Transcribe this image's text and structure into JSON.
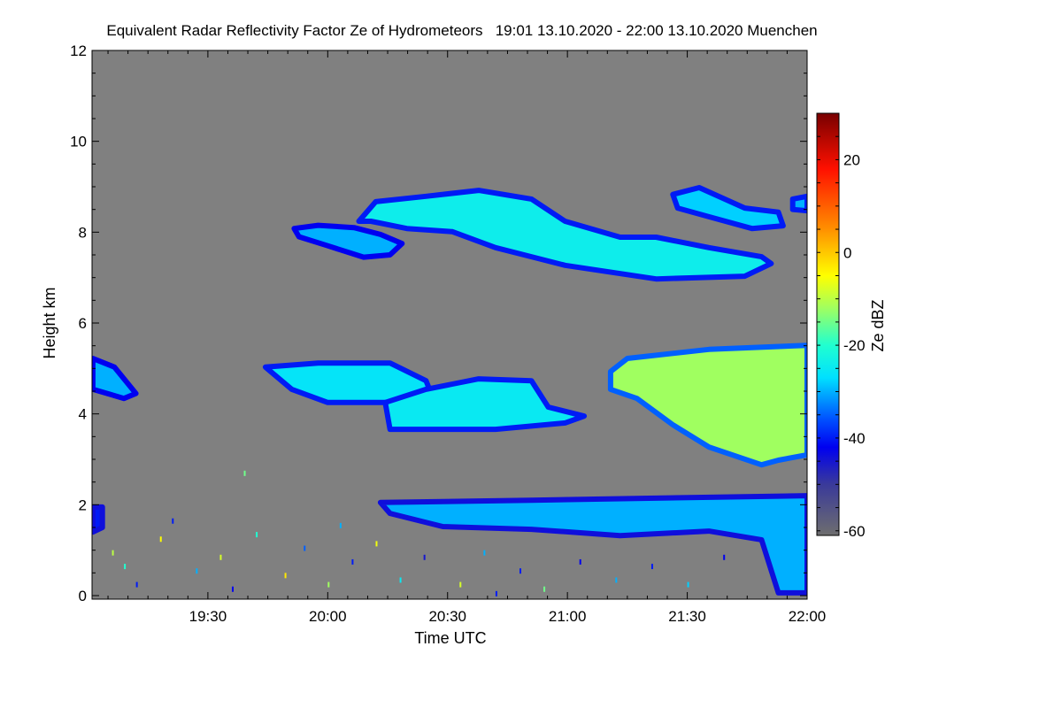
{
  "chart_data": {
    "type": "heatmap",
    "title": "Equivalent Radar Reflectivity Factor Ze of Hydrometeors   19:01 13.10.2020 - 22:00 13.10.2020 Muenchen",
    "xlabel": "Time UTC",
    "ylabel": "Height km",
    "x_unit": "hour UTC (decimal)",
    "xlim": [
      19.0167,
      22.0
    ],
    "ylim": [
      0,
      12
    ],
    "xticks": [
      {
        "v": 19.5,
        "label": "19:30"
      },
      {
        "v": 20.0,
        "label": "20:00"
      },
      {
        "v": 20.5,
        "label": "20:30"
      },
      {
        "v": 21.0,
        "label": "21:00"
      },
      {
        "v": 21.5,
        "label": "21:30"
      },
      {
        "v": 22.0,
        "label": "22:00"
      }
    ],
    "yticks": [
      {
        "v": 0,
        "label": "0"
      },
      {
        "v": 2,
        "label": "2"
      },
      {
        "v": 4,
        "label": "4"
      },
      {
        "v": 6,
        "label": "6"
      },
      {
        "v": 8,
        "label": "8"
      },
      {
        "v": 10,
        "label": "10"
      },
      {
        "v": 12,
        "label": "12"
      }
    ],
    "background_color": "#808080",
    "colorbar": {
      "label": "Ze dBZ",
      "range": [
        -61,
        30
      ],
      "ticks": [
        {
          "v": 20,
          "label": "20"
        },
        {
          "v": 0,
          "label": "0"
        },
        {
          "v": -20,
          "label": "-20"
        },
        {
          "v": -40,
          "label": "-40"
        },
        {
          "v": -60,
          "label": "-60"
        }
      ],
      "stops": [
        {
          "v": -61,
          "color": "#6e6e6e"
        },
        {
          "v": -50,
          "color": "#3a3a9a"
        },
        {
          "v": -42,
          "color": "#0000f0"
        },
        {
          "v": -36,
          "color": "#0050ff"
        },
        {
          "v": -27,
          "color": "#00e0ff"
        },
        {
          "v": -20,
          "color": "#20ffd0"
        },
        {
          "v": -12,
          "color": "#a0ff60"
        },
        {
          "v": -5,
          "color": "#ffff00"
        },
        {
          "v": 5,
          "color": "#ff9000"
        },
        {
          "v": 18,
          "color": "#ff1000"
        },
        {
          "v": 30,
          "color": "#780000"
        }
      ]
    },
    "echo_regions": [
      {
        "name": "upper-cloud-west",
        "edge_dbz": -42,
        "core_dbz": -30,
        "points": [
          [
            19.86,
            8.08
          ],
          [
            19.96,
            8.15
          ],
          [
            20.11,
            8.1
          ],
          [
            20.22,
            7.95
          ],
          [
            20.31,
            7.75
          ],
          [
            20.26,
            7.5
          ],
          [
            20.15,
            7.45
          ],
          [
            20.0,
            7.7
          ],
          [
            19.88,
            7.9
          ]
        ]
      },
      {
        "name": "upper-cloud-main",
        "edge_dbz": -40,
        "core_dbz": -24,
        "points": [
          [
            20.13,
            8.24
          ],
          [
            20.2,
            8.67
          ],
          [
            20.41,
            8.79
          ],
          [
            20.63,
            8.92
          ],
          [
            20.85,
            8.73
          ],
          [
            20.99,
            8.24
          ],
          [
            21.22,
            7.89
          ],
          [
            21.37,
            7.89
          ],
          [
            21.59,
            7.66
          ],
          [
            21.81,
            7.46
          ],
          [
            21.85,
            7.31
          ],
          [
            21.74,
            7.03
          ],
          [
            21.37,
            6.97
          ],
          [
            20.99,
            7.27
          ],
          [
            20.85,
            7.46
          ],
          [
            20.7,
            7.66
          ],
          [
            20.52,
            8.01
          ],
          [
            20.33,
            8.08
          ],
          [
            20.18,
            8.24
          ]
        ]
      },
      {
        "name": "upper-cloud-east",
        "edge_dbz": -40,
        "core_dbz": -28,
        "points": [
          [
            21.44,
            8.83
          ],
          [
            21.55,
            8.98
          ],
          [
            21.74,
            8.53
          ],
          [
            21.88,
            8.44
          ],
          [
            21.9,
            8.14
          ],
          [
            21.77,
            8.08
          ],
          [
            21.59,
            8.34
          ],
          [
            21.46,
            8.53
          ]
        ]
      },
      {
        "name": "upper-cloud-edge",
        "edge_dbz": -40,
        "core_dbz": -30,
        "points": [
          [
            21.94,
            8.73
          ],
          [
            22.0,
            8.79
          ],
          [
            22.0,
            8.47
          ],
          [
            21.94,
            8.5
          ]
        ]
      },
      {
        "name": "mid-cloud-left-edge",
        "edge_dbz": -42,
        "core_dbz": -30,
        "points": [
          [
            19.02,
            5.22
          ],
          [
            19.11,
            5.03
          ],
          [
            19.2,
            4.45
          ],
          [
            19.15,
            4.34
          ],
          [
            19.02,
            4.54
          ]
        ]
      },
      {
        "name": "mid-cloud-1",
        "edge_dbz": -40,
        "core_dbz": -26,
        "points": [
          [
            19.74,
            5.03
          ],
          [
            19.96,
            5.12
          ],
          [
            20.26,
            5.12
          ],
          [
            20.41,
            4.73
          ],
          [
            20.44,
            4.34
          ],
          [
            20.26,
            4.25
          ],
          [
            20.0,
            4.25
          ],
          [
            19.85,
            4.54
          ]
        ]
      },
      {
        "name": "mid-cloud-2",
        "edge_dbz": -40,
        "core_dbz": -25,
        "points": [
          [
            20.24,
            4.25
          ],
          [
            20.41,
            4.54
          ],
          [
            20.63,
            4.77
          ],
          [
            20.85,
            4.73
          ],
          [
            20.92,
            4.15
          ],
          [
            21.07,
            3.95
          ],
          [
            20.99,
            3.8
          ],
          [
            20.7,
            3.66
          ],
          [
            20.26,
            3.66
          ]
        ]
      },
      {
        "name": "mid-cloud-east",
        "edge_dbz": -35,
        "core_dbz": -12,
        "points": [
          [
            21.18,
            4.93
          ],
          [
            21.25,
            5.22
          ],
          [
            21.59,
            5.42
          ],
          [
            22.0,
            5.51
          ],
          [
            22.0,
            3.1
          ],
          [
            21.88,
            2.98
          ],
          [
            21.81,
            2.88
          ],
          [
            21.59,
            3.27
          ],
          [
            21.44,
            3.76
          ],
          [
            21.29,
            4.34
          ],
          [
            21.18,
            4.54
          ]
        ]
      },
      {
        "name": "low-layer",
        "edge_dbz": -44,
        "core_dbz": -30,
        "points": [
          [
            20.22,
            2.05
          ],
          [
            20.85,
            2.1
          ],
          [
            22.0,
            2.2
          ],
          [
            22.0,
            0.06
          ],
          [
            21.88,
            0.06
          ],
          [
            21.81,
            1.23
          ],
          [
            21.59,
            1.42
          ],
          [
            21.22,
            1.32
          ],
          [
            20.85,
            1.46
          ],
          [
            20.48,
            1.52
          ],
          [
            20.26,
            1.81
          ]
        ]
      },
      {
        "name": "low-patch-left",
        "edge_dbz": -44,
        "core_dbz": -40,
        "points": [
          [
            19.02,
            1.95
          ],
          [
            19.06,
            1.95
          ],
          [
            19.06,
            1.5
          ],
          [
            19.02,
            1.4
          ]
        ]
      }
    ],
    "speckles": [
      [
        19.1,
        1.0,
        -10
      ],
      [
        19.2,
        0.3,
        -40
      ],
      [
        19.3,
        1.3,
        -5
      ],
      [
        19.45,
        0.6,
        -30
      ],
      [
        19.55,
        0.9,
        -8
      ],
      [
        19.6,
        0.2,
        -42
      ],
      [
        19.7,
        1.4,
        -20
      ],
      [
        19.82,
        0.5,
        -3
      ],
      [
        19.9,
        1.1,
        -35
      ],
      [
        20.0,
        0.3,
        -12
      ],
      [
        20.1,
        0.8,
        -40
      ],
      [
        20.2,
        1.2,
        -6
      ],
      [
        20.3,
        0.4,
        -25
      ],
      [
        20.4,
        0.9,
        -45
      ],
      [
        20.55,
        0.3,
        -8
      ],
      [
        20.65,
        1.0,
        -30
      ],
      [
        20.8,
        0.6,
        -40
      ],
      [
        20.9,
        0.2,
        -15
      ],
      [
        21.05,
        0.8,
        -42
      ],
      [
        21.2,
        0.4,
        -30
      ],
      [
        21.35,
        0.7,
        -40
      ],
      [
        21.5,
        0.3,
        -28
      ],
      [
        21.65,
        0.9,
        -42
      ],
      [
        19.65,
        2.75,
        -15
      ],
      [
        19.35,
        1.7,
        -40
      ],
      [
        19.15,
        0.7,
        -20
      ],
      [
        20.05,
        1.6,
        -30
      ],
      [
        20.7,
        0.1,
        -40
      ]
    ]
  }
}
